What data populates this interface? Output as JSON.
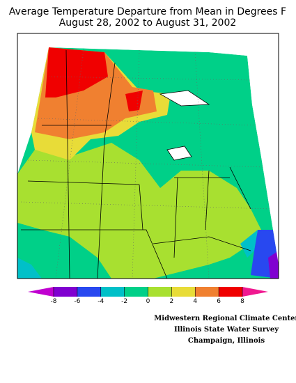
{
  "title": [
    "Average Temperature Departure from Mean in Degrees F",
    "August 28, 2002 to August 31, 2002"
  ],
  "legend": {
    "ticks": [
      -8,
      -6,
      -4,
      -2,
      0,
      2,
      4,
      6,
      8
    ],
    "colors": [
      "#c000d0",
      "#8000d0",
      "#2848f0",
      "#00c0c8",
      "#00d088",
      "#a8e030",
      "#e8dc38",
      "#f08030",
      "#f00000",
      "#f01890"
    ]
  },
  "credits": [
    "Midwestern Regional Climate Center",
    "Illinois State Water Survey",
    "Champaign, Illinois"
  ]
}
